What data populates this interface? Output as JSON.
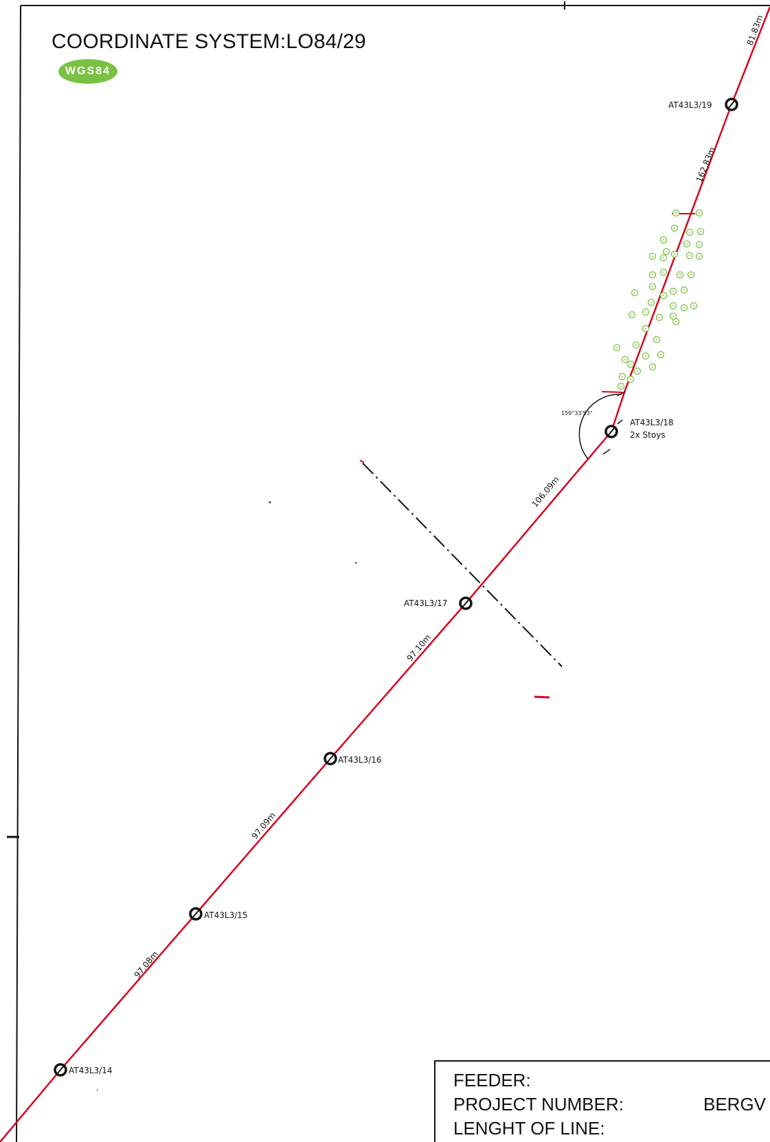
{
  "header": {
    "coordinate_system": "COORDINATE SYSTEM:LO84/29",
    "datum_badge": "WGS84"
  },
  "poles": [
    {
      "id": "AT43L3/19",
      "note": ""
    },
    {
      "id": "AT43L3/18",
      "note": "2x Stoys"
    },
    {
      "id": "AT43L3/17",
      "note": ""
    },
    {
      "id": "AT43L3/16",
      "note": ""
    },
    {
      "id": "AT43L3/15",
      "note": ""
    },
    {
      "id": "AT43L3/14",
      "note": ""
    }
  ],
  "spans": [
    {
      "label": "81.83m"
    },
    {
      "label": "162.83m"
    },
    {
      "label": "106.09m"
    },
    {
      "label": "97.10m"
    },
    {
      "label": "97.09m"
    },
    {
      "label": "97.08m"
    }
  ],
  "angle_label": "159°33'53\"",
  "info_box": {
    "feeder_label": "FEEDER:",
    "project_number_label": "PROJECT NUMBER:",
    "project_number_value": "BERGV",
    "length_label": "LENGHT OF LINE:"
  },
  "colors": {
    "line": "#d9001b",
    "pole": "#111111",
    "trees": "#7ac143",
    "badge": "#7ac143"
  }
}
